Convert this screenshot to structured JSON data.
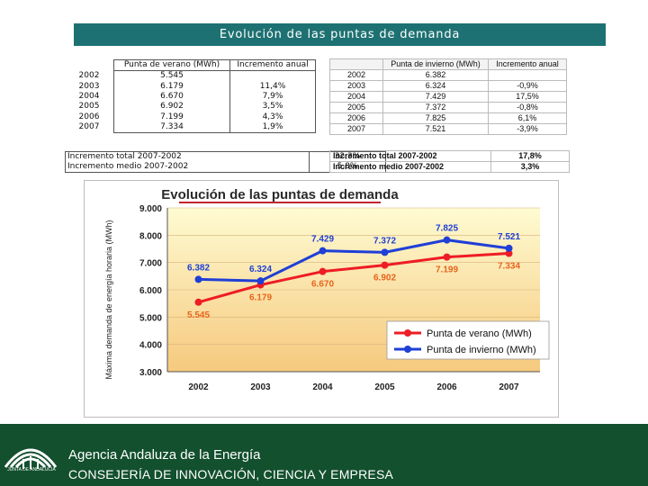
{
  "page": {
    "title": "Evolución de las puntas de demanda"
  },
  "summer_table": {
    "header_summer": "Punta de verano (MWh)",
    "header_increment": "Incremento anual",
    "rows": [
      {
        "year": "2002",
        "value": "5.545",
        "increment": ""
      },
      {
        "year": "2003",
        "value": "6.179",
        "increment": "11,4%"
      },
      {
        "year": "2004",
        "value": "6.670",
        "increment": "7,9%"
      },
      {
        "year": "2005",
        "value": "6.902",
        "increment": "3,5%"
      },
      {
        "year": "2006",
        "value": "7.199",
        "increment": "4,3%"
      },
      {
        "year": "2007",
        "value": "7.334",
        "increment": "1,9%"
      }
    ],
    "total_label": "Incremento total 2007-2002",
    "total_value": "32,3%",
    "mean_label": "Incremento medio 2007-2002",
    "mean_value": "5,8%"
  },
  "winter_table": {
    "header_year": "",
    "header_winter": "Punta de invierno (MWh)",
    "header_increment": "Incremento anual",
    "rows": [
      {
        "year": "2002",
        "value": "6.382",
        "increment": ""
      },
      {
        "year": "2003",
        "value": "6.324",
        "increment": "-0,9%"
      },
      {
        "year": "2004",
        "value": "7.429",
        "increment": "17,5%"
      },
      {
        "year": "2005",
        "value": "7.372",
        "increment": "-0,8%"
      },
      {
        "year": "2006",
        "value": "7.825",
        "increment": "6,1%"
      },
      {
        "year": "2007",
        "value": "7.521",
        "increment": "-3,9%"
      }
    ],
    "total_label": "Incremento total 2007-2002",
    "total_value": "17,8%",
    "mean_label": "Incremento medio 2007-2002",
    "mean_value": "3,3%"
  },
  "chart_data": {
    "type": "line",
    "title": "Evolución de las puntas de demanda",
    "xlabel": "",
    "ylabel": "Máxima demanda de energía horaria (MWh)",
    "categories": [
      "2002",
      "2003",
      "2004",
      "2005",
      "2006",
      "2007"
    ],
    "ylim": [
      3000,
      9000
    ],
    "yticks": [
      3000,
      4000,
      5000,
      6000,
      7000,
      8000,
      9000
    ],
    "ytick_labels": [
      "3.000",
      "4.000",
      "5.000",
      "6.000",
      "7.000",
      "8.000",
      "9.000"
    ],
    "legend_position": "bottom-right",
    "series": [
      {
        "name": "Punta de verano (MWh)",
        "color": "#ee1c25",
        "values": [
          5545,
          6179,
          6670,
          6902,
          7199,
          7334
        ],
        "labels": [
          "5.545",
          "6.179",
          "6.670",
          "6.902",
          "7.199",
          "7.334"
        ],
        "label_color": "#e8641c"
      },
      {
        "name": "Punta de invierno (MWh)",
        "color": "#1f3fd6",
        "values": [
          6382,
          6324,
          7429,
          7372,
          7825,
          7521
        ],
        "labels": [
          "6.382",
          "6.324",
          "7.429",
          "7.372",
          "7.825",
          "7.521"
        ],
        "label_color": "#1f3fd6"
      }
    ]
  },
  "footer": {
    "logo_caption": "JUNTA DE ANDALUCIA",
    "agency": "Agencia Andaluza de la Energía",
    "ministry": "CONSEJERÍA DE INNOVACIÓN, CIENCIA Y EMPRESA",
    "background": "#13502e"
  }
}
